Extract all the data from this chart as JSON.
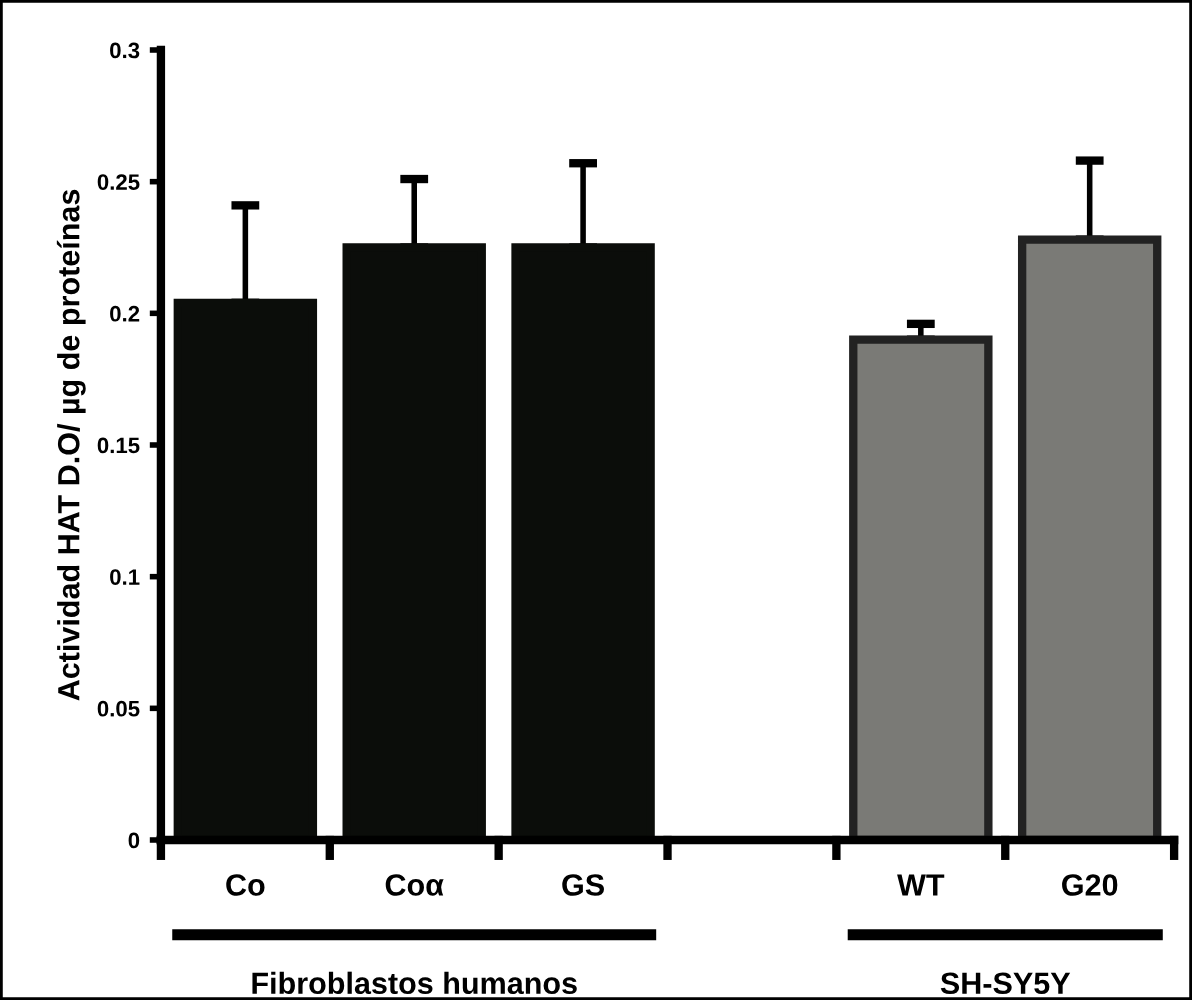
{
  "chart_data": {
    "type": "bar",
    "ylabel": "Actividad HAT D.O/ µg de proteínas",
    "categories": [
      "Co",
      "Coα",
      "GS",
      null,
      "WT",
      "G20"
    ],
    "values": [
      0.204,
      0.225,
      0.225,
      null,
      0.19,
      0.228
    ],
    "errors": [
      [
        0.204,
        0.241
      ],
      [
        0.225,
        0.251
      ],
      [
        0.225,
        0.257
      ],
      null,
      [
        0.19,
        0.196
      ],
      [
        0.228,
        0.258
      ]
    ],
    "colors": [
      "#0b0d0a",
      "#0b0d0a",
      "#0b0d0a",
      "#0b0d0a",
      "#7a7a76",
      "#7a7a76"
    ],
    "ylim": [
      0,
      0.3
    ],
    "yticks": [
      0,
      0.05,
      0.1,
      0.15,
      0.2,
      0.25,
      0.3
    ],
    "annotations": [
      "Fibroblastos humanos",
      "SH-SY5Y"
    ],
    "grid": false,
    "legend": false
  }
}
